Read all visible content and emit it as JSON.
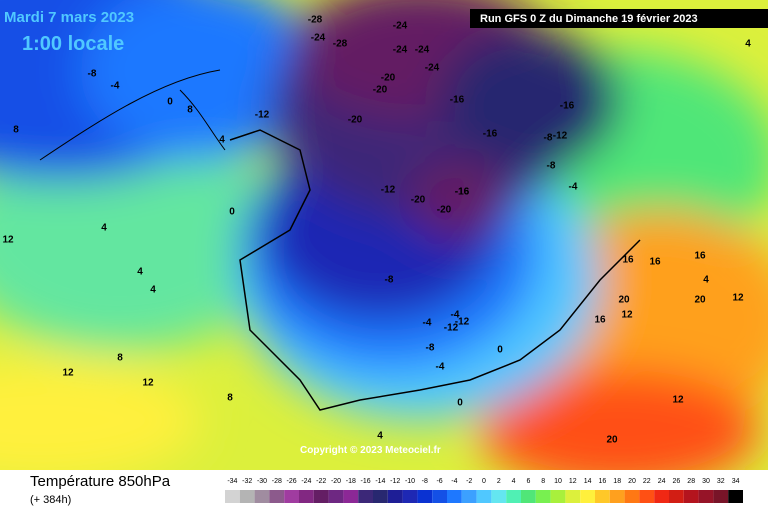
{
  "header": {
    "date": "Mardi 7 mars 2023",
    "time": "1:00 locale",
    "run": "Run GFS 0 Z du Dimanche 19 février 2023"
  },
  "copyright": "Copyright © 2023 Meteociel.fr",
  "footer": {
    "title": "Température 850hPa",
    "lead": "(+ 384h)"
  },
  "legend": {
    "values": [
      -34,
      -32,
      -30,
      -28,
      -26,
      -24,
      -22,
      -20,
      -18,
      -16,
      -14,
      -12,
      -10,
      -8,
      -6,
      -4,
      -2,
      0,
      2,
      4,
      6,
      8,
      10,
      12,
      14,
      16,
      18,
      20,
      22,
      24,
      26,
      28,
      30,
      32,
      34
    ],
    "colors": [
      "#d3d3d3",
      "#b4b4b4",
      "#a08ca0",
      "#8c5a8c",
      "#a03ca0",
      "#822882",
      "#641e64",
      "#6e2882",
      "#8c2896",
      "#3c2878",
      "#282870",
      "#1e1e96",
      "#1e28b4",
      "#0a32d2",
      "#1450e6",
      "#1e78ff",
      "#3ca0ff",
      "#50c8ff",
      "#64e6f0",
      "#50f0b4",
      "#50e678",
      "#78f050",
      "#a8f03c",
      "#dcf03c",
      "#fff03c",
      "#ffc828",
      "#ffa01e",
      "#ff7814",
      "#ff5014",
      "#f02814",
      "#d21e14",
      "#b4141e",
      "#961428",
      "#781428",
      "#000000"
    ]
  },
  "map_labels": [
    -28,
    -24,
    -28,
    -24,
    -24,
    -24,
    -20,
    -24,
    -20,
    -12,
    -8,
    -4,
    -8,
    -12,
    -16,
    -20,
    -16,
    -16,
    -16,
    -12,
    -8,
    -4,
    -12,
    -20,
    -16,
    -20,
    -8,
    -4,
    -12,
    -4,
    -8,
    0,
    4,
    4,
    4,
    8,
    8,
    12,
    12,
    12,
    8,
    4,
    0,
    16,
    16,
    20,
    16,
    12,
    20,
    20,
    16,
    12,
    4,
    8,
    0,
    -4,
    0,
    4,
    12,
    4
  ]
}
